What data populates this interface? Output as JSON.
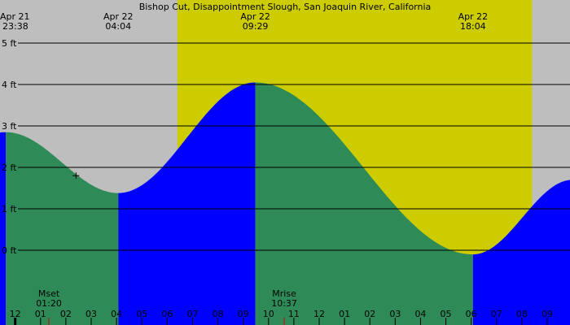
{
  "chart_data": {
    "type": "area",
    "title": "Bishop Cut, Disappointment Slough, San Joaquin River, California",
    "colors": {
      "night": "#bebebe",
      "day": "#cccc00",
      "falling_tide": "#2e8b57",
      "rising_tide": "#0000ff",
      "grid": "#000000"
    },
    "x_range_hours": [
      -0.6,
      21.9
    ],
    "ylim": [
      0,
      5
    ],
    "y_ticks": [
      {
        "value": 5,
        "label": "5 ft"
      },
      {
        "value": 4,
        "label": "4 ft"
      },
      {
        "value": 3,
        "label": "3 ft"
      },
      {
        "value": 2,
        "label": "2 ft"
      },
      {
        "value": 1,
        "label": "1 ft"
      },
      {
        "value": 0,
        "label": "0 ft"
      }
    ],
    "hour_ticks": [
      {
        "hour": -1,
        "label": "11"
      },
      {
        "hour": 0,
        "label": "12"
      },
      {
        "hour": 1,
        "label": "01"
      },
      {
        "hour": 2,
        "label": "02"
      },
      {
        "hour": 3,
        "label": "03"
      },
      {
        "hour": 4,
        "label": "04"
      },
      {
        "hour": 5,
        "label": "05"
      },
      {
        "hour": 6,
        "label": "06"
      },
      {
        "hour": 7,
        "label": "07"
      },
      {
        "hour": 8,
        "label": "08"
      },
      {
        "hour": 9,
        "label": "09"
      },
      {
        "hour": 10,
        "label": "10"
      },
      {
        "hour": 11,
        "label": "11"
      },
      {
        "hour": 12,
        "label": "12"
      },
      {
        "hour": 13,
        "label": "01"
      },
      {
        "hour": 14,
        "label": "02"
      },
      {
        "hour": 15,
        "label": "03"
      },
      {
        "hour": 16,
        "label": "04"
      },
      {
        "hour": 17,
        "label": "05"
      },
      {
        "hour": 18,
        "label": "06"
      },
      {
        "hour": 19,
        "label": "07"
      },
      {
        "hour": 20,
        "label": "08"
      },
      {
        "hour": 21,
        "label": "09"
      }
    ],
    "daylight": {
      "start": 6.4,
      "end": 20.4
    },
    "extremes": [
      {
        "hour": -0.37,
        "date": "Apr 21",
        "time": "23:38",
        "height": 2.85,
        "type": "high"
      },
      {
        "hour": 4.07,
        "date": "Apr 22",
        "time": "04:04",
        "height": 1.38,
        "type": "low"
      },
      {
        "hour": 9.48,
        "date": "Apr 22",
        "time": "09:29",
        "height": 4.05,
        "type": "high"
      },
      {
        "hour": 18.07,
        "date": "Apr 22",
        "time": "18:04",
        "height": -0.1,
        "type": "low"
      }
    ],
    "curve_end": {
      "hour": 22.0,
      "height": 1.7
    },
    "moon_events": [
      {
        "label": "Mset",
        "time": "01:20",
        "hour": 1.33
      },
      {
        "label": "Mrise",
        "time": "10:37",
        "hour": 10.62
      }
    ],
    "cursor_marker": {
      "hour": 2.4,
      "height": 1.8
    }
  }
}
